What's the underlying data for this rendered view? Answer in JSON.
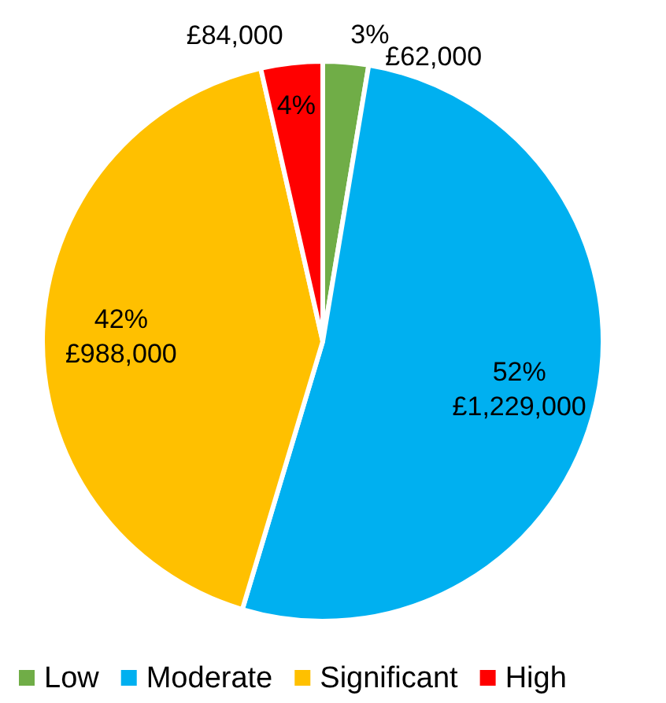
{
  "chart_data": {
    "type": "pie",
    "categories": [
      "Low",
      "Moderate",
      "Significant",
      "High"
    ],
    "values": [
      62000,
      1229000,
      988000,
      84000
    ],
    "colors": [
      "#70ad47",
      "#00b0f0",
      "#ffc000",
      "#ff0000"
    ],
    "value_labels": [
      "£62,000",
      "£1,229,000",
      "£988,000",
      "£84,000"
    ],
    "annotations": [
      {
        "text": "3%",
        "x": "Low"
      },
      {
        "text": "52%",
        "x": "Moderate"
      },
      {
        "text": "42%",
        "x": "Significant"
      },
      {
        "text": "4%",
        "x": "High"
      }
    ],
    "legend": "bottom"
  }
}
